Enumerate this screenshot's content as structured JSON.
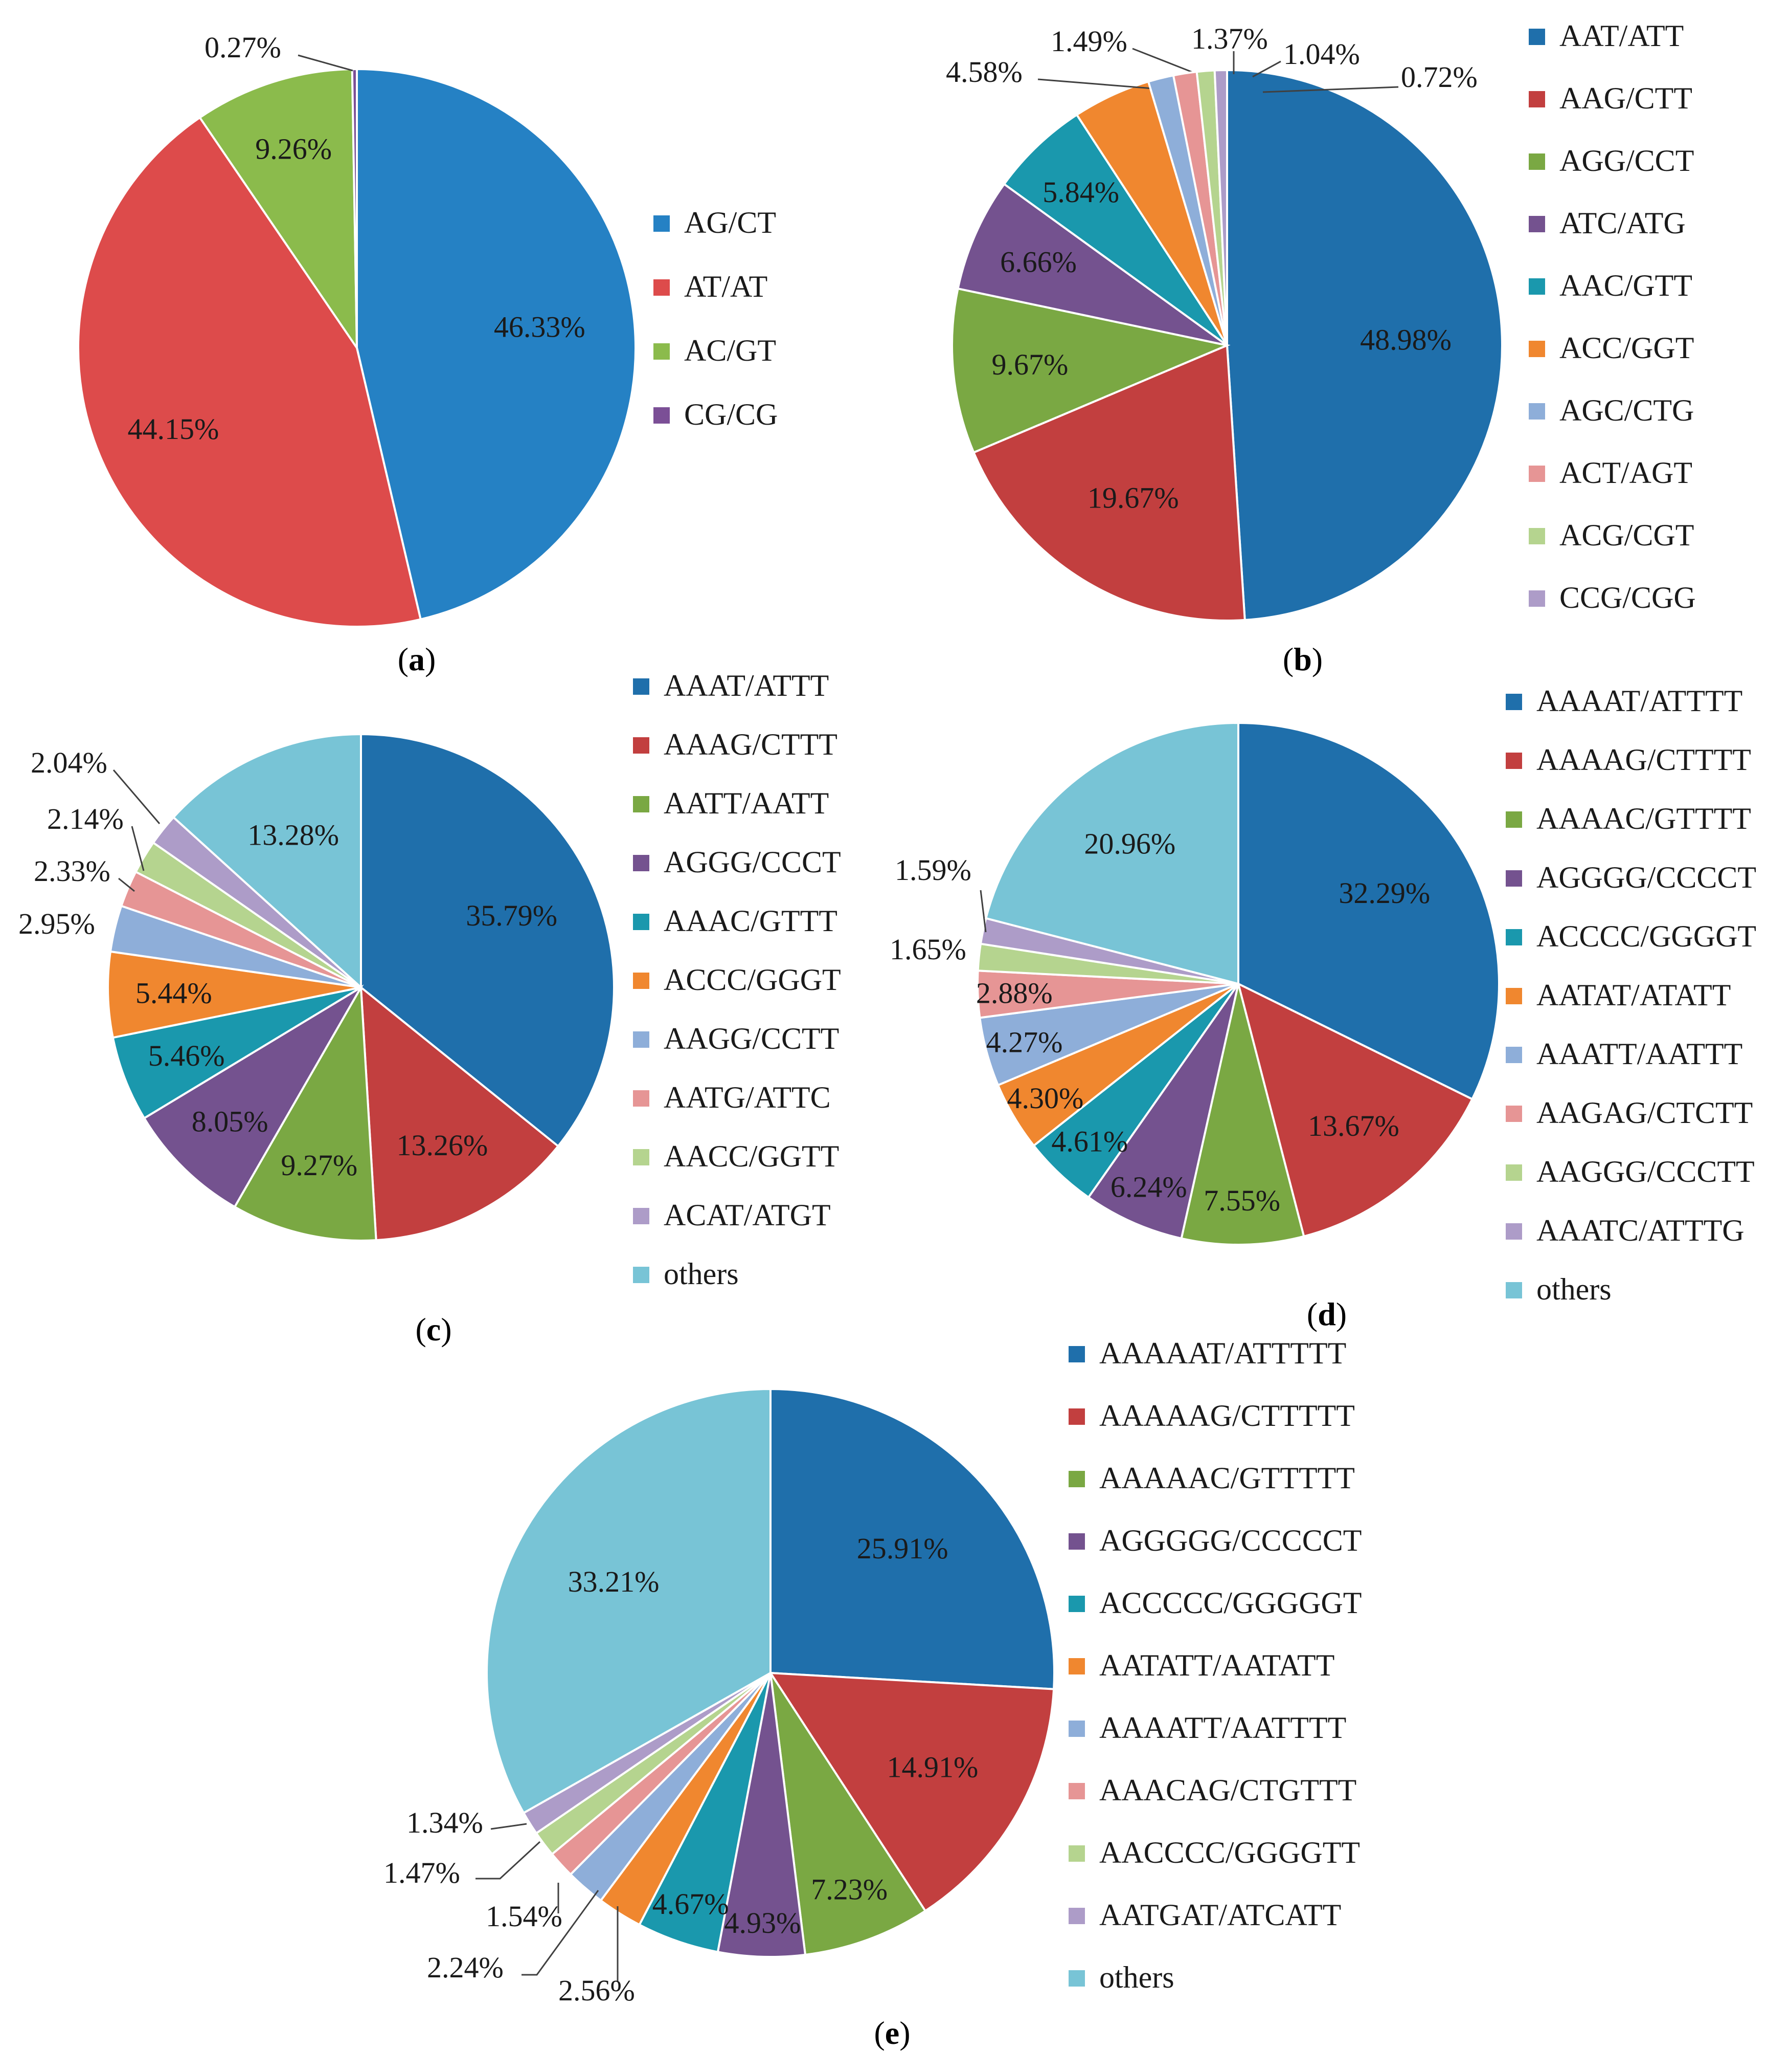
{
  "chart_data": [
    {
      "panel": "a",
      "type": "pie",
      "caption": "a",
      "slices": [
        {
          "label": "AG/CT",
          "value": 46.33,
          "display": "46.33%",
          "color": "#2581c4"
        },
        {
          "label": "AT/AT",
          "value": 44.15,
          "display": "44.15%",
          "color": "#dd4b4b"
        },
        {
          "label": "AC/GT",
          "value": 9.26,
          "display": "9.26%",
          "color": "#8bbb4c"
        },
        {
          "label": "CG/CG",
          "value": 0.27,
          "display": "0.27%",
          "color": "#7b4f96"
        }
      ]
    },
    {
      "panel": "b",
      "type": "pie",
      "caption": "b",
      "slices": [
        {
          "label": "AAT/ATT",
          "value": 48.98,
          "display": "48.98%",
          "color": "#1f6fab"
        },
        {
          "label": "AAG/CTT",
          "value": 19.67,
          "display": "19.67%",
          "color": "#c23f3f"
        },
        {
          "label": "AGG/CCT",
          "value": 9.67,
          "display": "9.67%",
          "color": "#7aa843"
        },
        {
          "label": "ATC/ATG",
          "value": 6.66,
          "display": "6.66%",
          "color": "#74528f"
        },
        {
          "label": "AAC/GTT",
          "value": 5.84,
          "display": "5.84%",
          "color": "#1a98ad"
        },
        {
          "label": "ACC/GGT",
          "value": 4.58,
          "display": "4.58%",
          "color": "#f0872f"
        },
        {
          "label": "AGC/CTG",
          "value": 1.49,
          "display": "1.49%",
          "color": "#8eaed9"
        },
        {
          "label": "ACT/AGT",
          "value": 1.37,
          "display": "1.37%",
          "color": "#e69595"
        },
        {
          "label": "ACG/CGT",
          "value": 1.04,
          "display": "1.04%",
          "color": "#b5d48f"
        },
        {
          "label": "CCG/CGG",
          "value": 0.72,
          "display": "0.72%",
          "color": "#ad9cc8"
        }
      ]
    },
    {
      "panel": "c",
      "type": "pie",
      "caption": "c",
      "slices": [
        {
          "label": "AAAT/ATTT",
          "value": 35.79,
          "display": "35.79%",
          "color": "#1f6fab"
        },
        {
          "label": "AAAG/CTTT",
          "value": 13.26,
          "display": "13.26%",
          "color": "#c23f3f"
        },
        {
          "label": "AATT/AATT",
          "value": 9.27,
          "display": "9.27%",
          "color": "#7aa843"
        },
        {
          "label": "AGGG/CCCT",
          "value": 8.05,
          "display": "8.05%",
          "color": "#74528f"
        },
        {
          "label": "AAAC/GTTT",
          "value": 5.46,
          "display": "5.46%",
          "color": "#1a98ad"
        },
        {
          "label": "ACCC/GGGT",
          "value": 5.44,
          "display": "5.44%",
          "color": "#f0872f"
        },
        {
          "label": "AAGG/CCTT",
          "value": 2.95,
          "display": "2.95%",
          "color": "#8eaed9"
        },
        {
          "label": "AATG/ATTC",
          "value": 2.33,
          "display": "2.33%",
          "color": "#e69595"
        },
        {
          "label": "AACC/GGTT",
          "value": 2.14,
          "display": "2.14%",
          "color": "#b5d48f"
        },
        {
          "label": "ACAT/ATGT",
          "value": 2.04,
          "display": "2.04%",
          "color": "#ad9cc8"
        },
        {
          "label": "others",
          "value": 13.28,
          "display": "13.28%",
          "color": "#78c4d6"
        }
      ]
    },
    {
      "panel": "d",
      "type": "pie",
      "caption": "d",
      "slices": [
        {
          "label": "AAAAT/ATTTT",
          "value": 32.29,
          "display": "32.29%",
          "color": "#1f6fab"
        },
        {
          "label": "AAAAG/CTTTT",
          "value": 13.67,
          "display": "13.67%",
          "color": "#c23f3f"
        },
        {
          "label": "AAAAC/GTTTT",
          "value": 7.55,
          "display": "7.55%",
          "color": "#7aa843"
        },
        {
          "label": "AGGGG/CCCCT",
          "value": 6.24,
          "display": "6.24%",
          "color": "#74528f"
        },
        {
          "label": "ACCCC/GGGGT",
          "value": 4.61,
          "display": "4.61%",
          "color": "#1a98ad"
        },
        {
          "label": "AATAT/ATATT",
          "value": 4.3,
          "display": "4.30%",
          "color": "#f0872f"
        },
        {
          "label": "AAATT/AATTT",
          "value": 4.27,
          "display": "4.27%",
          "color": "#8eaed9"
        },
        {
          "label": "AAGAG/CTCTT",
          "value": 2.88,
          "display": "2.88%",
          "color": "#e69595"
        },
        {
          "label": "AAGGG/CCCTT",
          "value": 1.65,
          "display": "1.65%",
          "color": "#b5d48f"
        },
        {
          "label": "AAATC/ATTTG",
          "value": 1.59,
          "display": "1.59%",
          "color": "#ad9cc8"
        },
        {
          "label": "others",
          "value": 20.96,
          "display": "20.96%",
          "color": "#78c4d6"
        }
      ]
    },
    {
      "panel": "e",
      "type": "pie",
      "caption": "e",
      "slices": [
        {
          "label": "AAAAAT/ATTTTT",
          "value": 25.91,
          "display": "25.91%",
          "color": "#1f6fab"
        },
        {
          "label": "AAAAAG/CTTTTT",
          "value": 14.91,
          "display": "14.91%",
          "color": "#c23f3f"
        },
        {
          "label": "AAAAAC/GTTTTT",
          "value": 7.23,
          "display": "7.23%",
          "color": "#7aa843"
        },
        {
          "label": "AGGGGG/CCCCCT",
          "value": 4.93,
          "display": "4.93%",
          "color": "#74528f"
        },
        {
          "label": "ACCCCC/GGGGGT",
          "value": 4.67,
          "display": "4.67%",
          "color": "#1a98ad"
        },
        {
          "label": "AATATT/AATATT",
          "value": 2.56,
          "display": "2.56%",
          "color": "#f0872f"
        },
        {
          "label": "AAAATT/AATTTT",
          "value": 2.24,
          "display": "2.24%",
          "color": "#8eaed9"
        },
        {
          "label": "AAACAG/CTGTTT",
          "value": 1.54,
          "display": "1.54%",
          "color": "#e69595"
        },
        {
          "label": "AACCCC/GGGGTT",
          "value": 1.47,
          "display": "1.47%",
          "color": "#b5d48f"
        },
        {
          "label": "AATGAT/ATCATT",
          "value": 1.34,
          "display": "1.34%",
          "color": "#ad9cc8"
        },
        {
          "label": "others",
          "value": 33.21,
          "display": "33.21%",
          "color": "#78c4d6"
        }
      ]
    }
  ]
}
